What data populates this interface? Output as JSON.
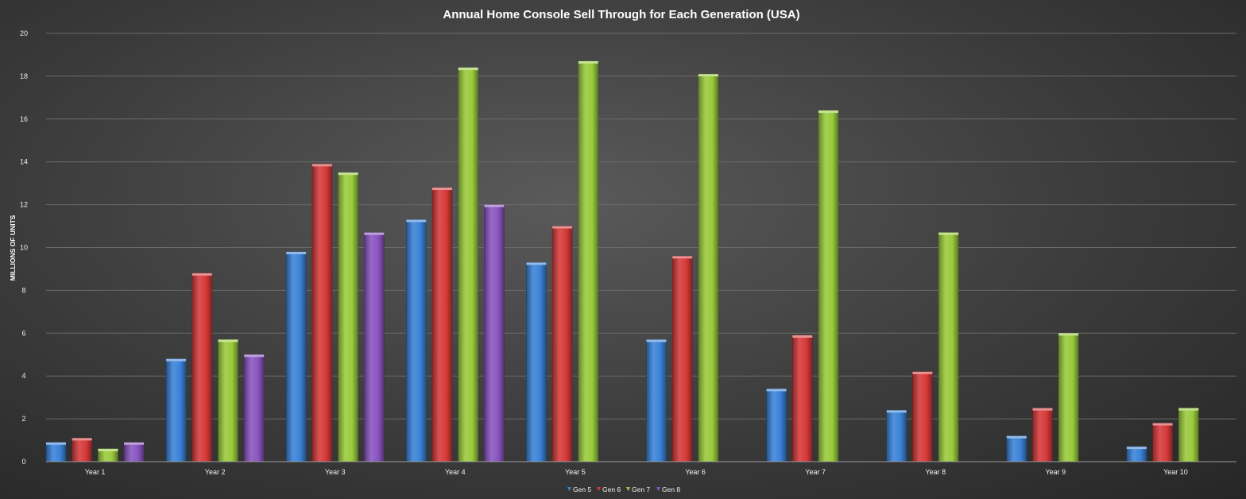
{
  "chart_data": {
    "type": "bar",
    "title": "Annual Home Console Sell Through for Each Generation (USA)",
    "xlabel": "",
    "ylabel": "MILLIONS OF UNITS",
    "ylim": [
      0,
      20
    ],
    "yticks": [
      0,
      2,
      4,
      6,
      8,
      10,
      12,
      14,
      16,
      18,
      20
    ],
    "grid": true,
    "legend_position": "bottom",
    "categories": [
      "Year 1",
      "Year 2",
      "Year 3",
      "Year 4",
      "Year 5",
      "Year 6",
      "Year 7",
      "Year 8",
      "Year 9",
      "Year 10"
    ],
    "series": [
      {
        "name": "Gen 5",
        "color": "#3a83d8",
        "values": [
          0.9,
          4.8,
          9.8,
          11.3,
          9.3,
          5.7,
          3.4,
          2.4,
          1.2,
          0.7
        ]
      },
      {
        "name": "Gen 6",
        "color": "#d63a3a",
        "values": [
          1.1,
          8.8,
          13.9,
          12.8,
          11.0,
          9.6,
          5.9,
          4.2,
          2.5,
          1.8
        ]
      },
      {
        "name": "Gen 7",
        "color": "#9acb3c",
        "values": [
          0.6,
          5.7,
          13.5,
          18.4,
          18.7,
          18.1,
          16.4,
          10.7,
          6.0,
          2.5
        ]
      },
      {
        "name": "Gen 8",
        "color": "#8a55c0",
        "values": [
          0.9,
          5.0,
          10.7,
          12.0,
          null,
          null,
          null,
          null,
          null,
          null
        ]
      }
    ]
  }
}
